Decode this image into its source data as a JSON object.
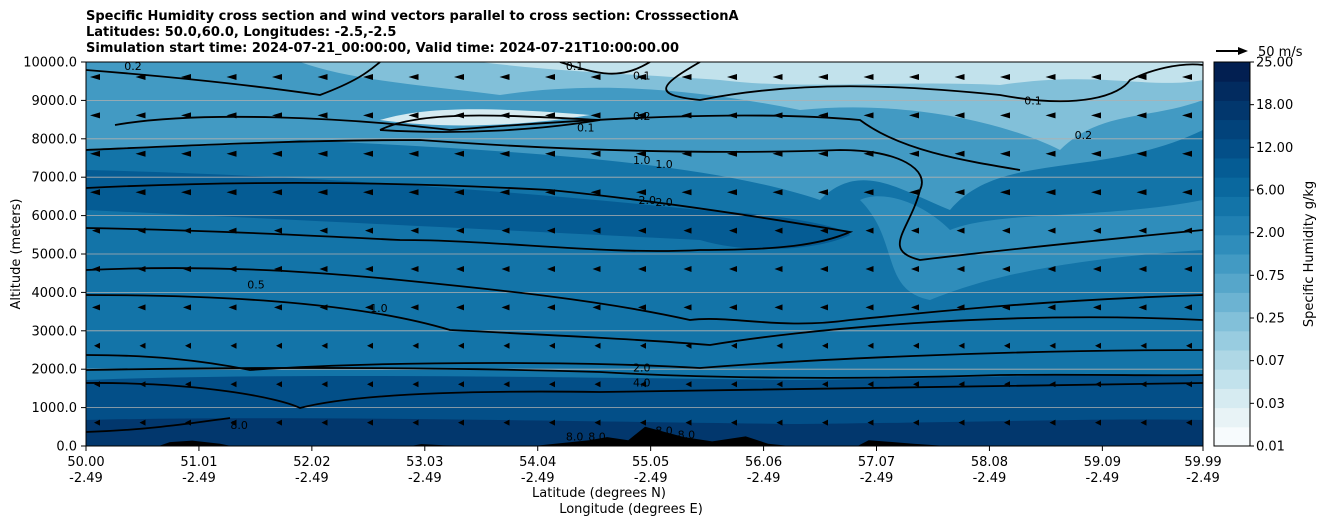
{
  "chart_data": {
    "type": "contour",
    "title_lines": [
      "Specific Humidity cross section and wind vectors parallel to cross section: CrosssectionA",
      "Latitudes: 50.0,60.0, Longitudes: -2.5,-2.5",
      "Simulation start time: 2024-07-21_00:00:00, Valid time: 2024-07-21T10:00:00.00"
    ],
    "xlabel_lat": "Latitude (degrees N)",
    "xlabel_lon": "Longitude (degrees E)",
    "ylabel": "Altitude (meters)",
    "xlim": [
      50.0,
      59.99
    ],
    "ylim": [
      0,
      10000
    ],
    "x_ticks": [
      {
        "lat": "50.00",
        "lon": "-2.49",
        "v": 50.0
      },
      {
        "lat": "51.01",
        "lon": "-2.49",
        "v": 51.01
      },
      {
        "lat": "52.02",
        "lon": "-2.49",
        "v": 52.02
      },
      {
        "lat": "53.03",
        "lon": "-2.49",
        "v": 53.03
      },
      {
        "lat": "54.04",
        "lon": "-2.49",
        "v": 54.04
      },
      {
        "lat": "55.05",
        "lon": "-2.49",
        "v": 55.05
      },
      {
        "lat": "56.06",
        "lon": "-2.49",
        "v": 56.06
      },
      {
        "lat": "57.07",
        "lon": "-2.49",
        "v": 57.07
      },
      {
        "lat": "58.08",
        "lon": "-2.49",
        "v": 58.08
      },
      {
        "lat": "59.09",
        "lon": "-2.49",
        "v": 59.09
      },
      {
        "lat": "59.99",
        "lon": "-2.49",
        "v": 59.99
      }
    ],
    "y_ticks": [
      {
        "label": "0.0",
        "v": 0
      },
      {
        "label": "1000.0",
        "v": 1000
      },
      {
        "label": "2000.0",
        "v": 2000
      },
      {
        "label": "3000.0",
        "v": 3000
      },
      {
        "label": "4000.0",
        "v": 4000
      },
      {
        "label": "5000.0",
        "v": 5000
      },
      {
        "label": "6000.0",
        "v": 6000
      },
      {
        "label": "7000.0",
        "v": 7000
      },
      {
        "label": "8000.0",
        "v": 8000
      },
      {
        "label": "9000.0",
        "v": 9000
      },
      {
        "label": "10000.0",
        "v": 10000
      }
    ],
    "grid": "horizontal",
    "colorbar": {
      "label": "Specific Humidity g/kg",
      "tick_labels": [
        "0.01",
        "0.03",
        "0.07",
        "0.25",
        "0.75",
        "2.00",
        "6.00",
        "12.00",
        "18.00",
        "25.00"
      ],
      "levels": 20,
      "colors": [
        "#f7fbfd",
        "#e8f3f6",
        "#d6ebf1",
        "#c2e2ec",
        "#aed7e5",
        "#98cce0",
        "#82c0d9",
        "#6cb3d2",
        "#56a6ca",
        "#429ac3",
        "#2f8dbb",
        "#2080b2",
        "#1374a8",
        "#0a689e",
        "#055c94",
        "#034f88",
        "#02437b",
        "#02376d",
        "#022b5f",
        "#021f51"
      ]
    },
    "wind_key": {
      "label": "50 m/s",
      "speed": 50
    },
    "wind_direction": "toward lower latitude (northerly, parallel to section)",
    "contour_labels": [
      {
        "text": "0.2",
        "lat": 50.42,
        "alt": 9900
      },
      {
        "text": "0.1",
        "lat": 54.37,
        "alt": 9900
      },
      {
        "text": "0.1",
        "lat": 54.97,
        "alt": 9650
      },
      {
        "text": "0.1",
        "lat": 58.47,
        "alt": 9000
      },
      {
        "text": "0.1",
        "lat": 54.47,
        "alt": 8300
      },
      {
        "text": "0.2",
        "lat": 54.97,
        "alt": 8600
      },
      {
        "text": "0.2",
        "lat": 58.92,
        "alt": 8100
      },
      {
        "text": "1.0",
        "lat": 54.97,
        "alt": 7450
      },
      {
        "text": "1.0",
        "lat": 55.17,
        "alt": 7350
      },
      {
        "text": "2.0",
        "lat": 55.02,
        "alt": 6400
      },
      {
        "text": "2.0",
        "lat": 55.17,
        "alt": 6350
      },
      {
        "text": "0.5",
        "lat": 51.52,
        "alt": 4200
      },
      {
        "text": "1.0",
        "lat": 52.62,
        "alt": 3600
      },
      {
        "text": "2.0",
        "lat": 54.97,
        "alt": 2050
      },
      {
        "text": "4.0",
        "lat": 54.97,
        "alt": 1650
      },
      {
        "text": "8.0",
        "lat": 51.37,
        "alt": 550
      },
      {
        "text": "8.0",
        "lat": 54.37,
        "alt": 250
      },
      {
        "text": "8.0",
        "lat": 54.57,
        "alt": 250
      },
      {
        "text": "8.0",
        "lat": 55.17,
        "alt": 400
      },
      {
        "text": "8.0",
        "lat": 55.37,
        "alt": 300
      }
    ],
    "terrain_m": [
      {
        "lat": 50.0,
        "alt": 0
      },
      {
        "lat": 50.65,
        "alt": 0
      },
      {
        "lat": 50.75,
        "alt": 100
      },
      {
        "lat": 50.95,
        "alt": 140
      },
      {
        "lat": 51.2,
        "alt": 60
      },
      {
        "lat": 51.3,
        "alt": 0
      },
      {
        "lat": 52.9,
        "alt": 0
      },
      {
        "lat": 53.0,
        "alt": 50
      },
      {
        "lat": 53.2,
        "alt": 20
      },
      {
        "lat": 53.5,
        "alt": 0
      },
      {
        "lat": 54.0,
        "alt": 0
      },
      {
        "lat": 54.5,
        "alt": 150
      },
      {
        "lat": 54.66,
        "alt": 230
      },
      {
        "lat": 54.85,
        "alt": 150
      },
      {
        "lat": 55.0,
        "alt": 500
      },
      {
        "lat": 55.35,
        "alt": 230
      },
      {
        "lat": 55.6,
        "alt": 120
      },
      {
        "lat": 55.9,
        "alt": 250
      },
      {
        "lat": 56.1,
        "alt": 60
      },
      {
        "lat": 56.3,
        "alt": 0
      },
      {
        "lat": 56.9,
        "alt": 0
      },
      {
        "lat": 57.0,
        "alt": 150
      },
      {
        "lat": 57.4,
        "alt": 60
      },
      {
        "lat": 57.7,
        "alt": 0
      },
      {
        "lat": 59.99,
        "alt": 0
      }
    ]
  }
}
